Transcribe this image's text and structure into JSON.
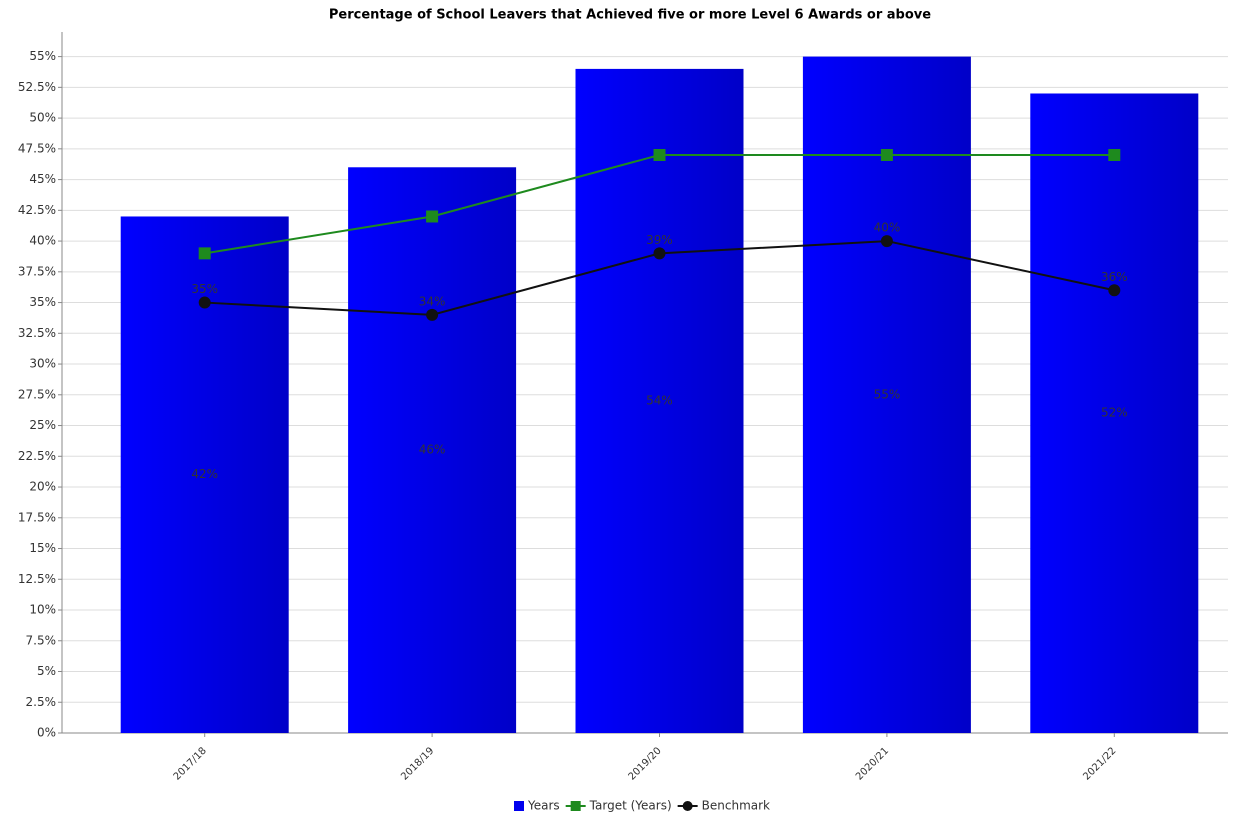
{
  "chart_data": {
    "type": "bar",
    "title": "Percentage of School Leavers that Achieved five or more Level 6 Awards or above",
    "categories": [
      "2017/18",
      "2018/19",
      "2019/20",
      "2020/21",
      "2021/22"
    ],
    "series": [
      {
        "name": "Years",
        "type": "bar",
        "color": "#0000ee",
        "values": [
          42,
          46,
          54,
          55,
          52
        ],
        "value_labels": [
          "42%",
          "46%",
          "54%",
          "55%",
          "52%"
        ]
      },
      {
        "name": "Target (Years)",
        "type": "line",
        "marker": "square",
        "color": "#1e8a1e",
        "values": [
          39,
          42,
          47,
          47,
          47
        ]
      },
      {
        "name": "Benchmark",
        "type": "line",
        "marker": "circle",
        "color": "#111111",
        "values": [
          35,
          34,
          39,
          40,
          36
        ],
        "value_labels": [
          "35%",
          "34%",
          "39%",
          "40%",
          "36%"
        ]
      }
    ],
    "ylim": [
      0,
      57
    ],
    "yticks": [
      {
        "value": 0,
        "label": "0%"
      },
      {
        "value": 2.5,
        "label": "2.5%"
      },
      {
        "value": 5,
        "label": "5%"
      },
      {
        "value": 7.5,
        "label": "7.5%"
      },
      {
        "value": 10,
        "label": "10%"
      },
      {
        "value": 12.5,
        "label": "12.5%"
      },
      {
        "value": 15,
        "label": "15%"
      },
      {
        "value": 17.5,
        "label": "17.5%"
      },
      {
        "value": 20,
        "label": "20%"
      },
      {
        "value": 22.5,
        "label": "22.5%"
      },
      {
        "value": 25,
        "label": "25%"
      },
      {
        "value": 27.5,
        "label": "27.5%"
      },
      {
        "value": 30,
        "label": "30%"
      },
      {
        "value": 32.5,
        "label": "32.5%"
      },
      {
        "value": 35,
        "label": "35%"
      },
      {
        "value": 37.5,
        "label": "37.5%"
      },
      {
        "value": 40,
        "label": "40%"
      },
      {
        "value": 42.5,
        "label": "42.5%"
      },
      {
        "value": 45,
        "label": "45%"
      },
      {
        "value": 47.5,
        "label": "47.5%"
      },
      {
        "value": 50,
        "label": "50%"
      },
      {
        "value": 52.5,
        "label": "52.5%"
      },
      {
        "value": 55,
        "label": "55%"
      }
    ],
    "grid": true,
    "legend": "bottom"
  }
}
